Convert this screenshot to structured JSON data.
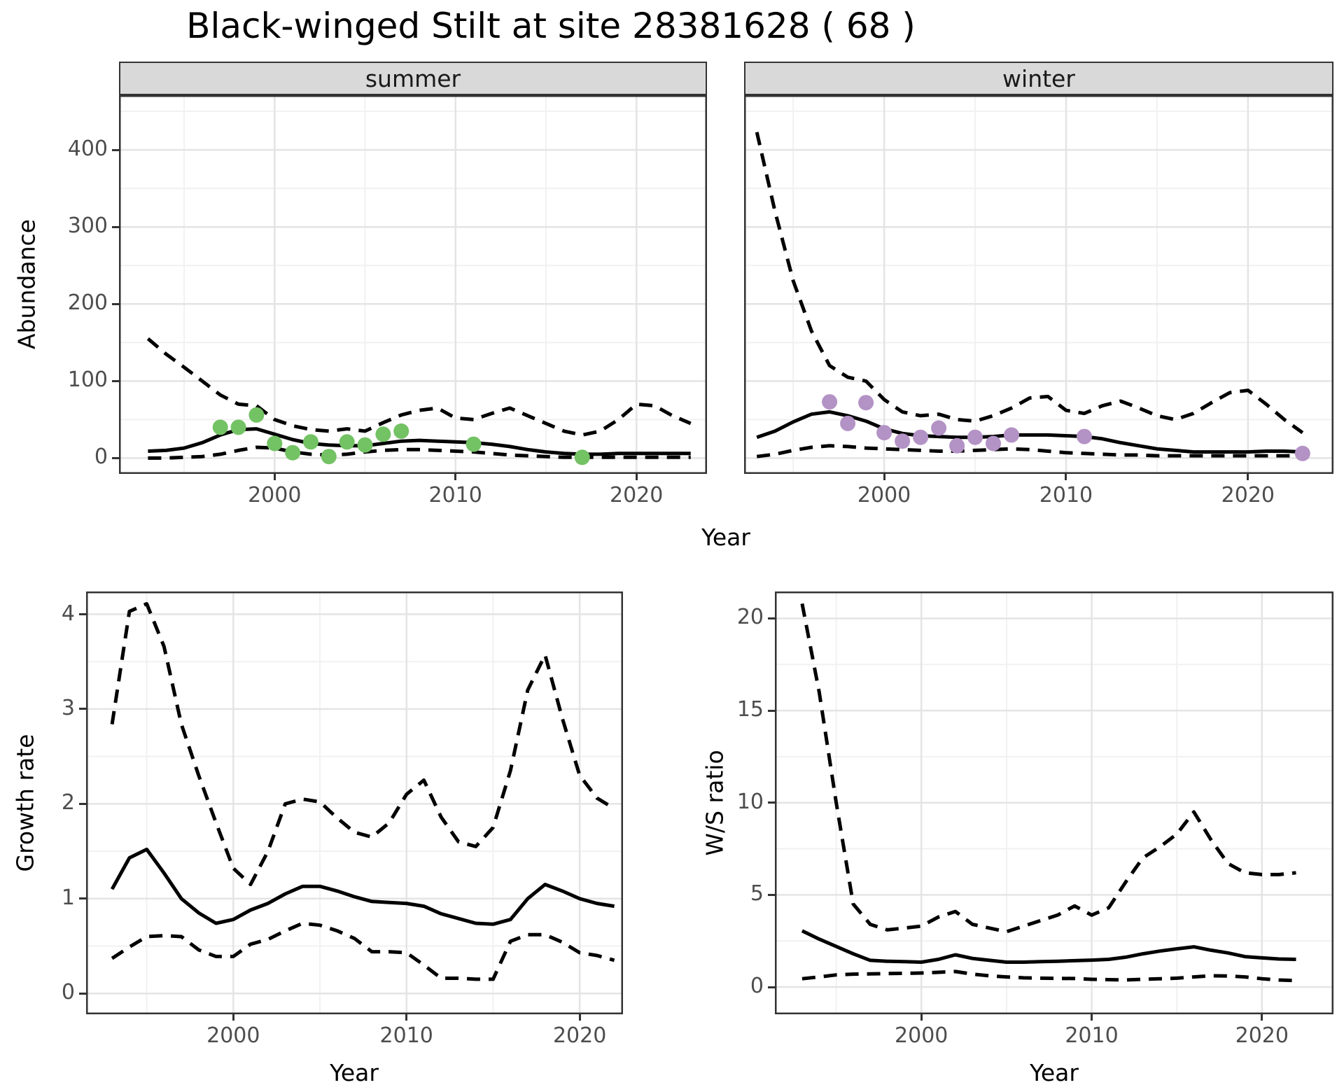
{
  "title": "Black-winged Stilt at site 28381628 ( 68 )",
  "colors": {
    "summer_point": "#73c264",
    "winter_point": "#b392c5",
    "line": "#000000",
    "strip_bg": "#d9d9d9",
    "grid_major": "#e4e4e4",
    "grid_minor": "#f1f1f1",
    "axis_text": "#4d4d4d",
    "panel_border": "#333333"
  },
  "top_row": {
    "ylab": "Abundance",
    "xlab": "Year",
    "facets": [
      "summer",
      "winter"
    ]
  },
  "bottom_left": {
    "ylab": "Growth rate",
    "xlab": "Year"
  },
  "bottom_right": {
    "ylab": "W/S ratio",
    "xlab": "Year"
  },
  "chart_data": [
    {
      "id": "summer-abundance",
      "type": "line",
      "facet": "summer",
      "xlabel": "Year",
      "ylabel": "Abundance",
      "xlim": [
        1991.4,
        2023.9
      ],
      "ylim": [
        -20.5,
        471
      ],
      "xticks": [
        2000,
        2010,
        2020
      ],
      "yticks": [
        0,
        100,
        200,
        300,
        400
      ],
      "xminor": [
        1995,
        2005,
        2015
      ],
      "yminor": [
        50,
        150,
        250,
        350,
        450
      ],
      "grid": true,
      "legend": "none",
      "years": [
        1993,
        1994,
        1995,
        1996,
        1997,
        1998,
        1999,
        2000,
        2001,
        2002,
        2003,
        2004,
        2005,
        2006,
        2007,
        2008,
        2009,
        2010,
        2011,
        2012,
        2013,
        2014,
        2015,
        2016,
        2017,
        2018,
        2019,
        2020,
        2021,
        2022,
        2023
      ],
      "series": [
        {
          "name": "mean",
          "style": "solid",
          "values": [
            9,
            10,
            13,
            20,
            30,
            37,
            38,
            31,
            24,
            19,
            17,
            16,
            16,
            19,
            22,
            23,
            22,
            21,
            20,
            18,
            15,
            11,
            8,
            6,
            5,
            5,
            6,
            6,
            6,
            6,
            6
          ]
        },
        {
          "name": "upper_ci",
          "style": "dashed",
          "values": [
            155,
            135,
            118,
            100,
            82,
            70,
            68,
            50,
            42,
            37,
            35,
            38,
            35,
            46,
            56,
            62,
            65,
            52,
            50,
            58,
            65,
            55,
            45,
            35,
            30,
            35,
            50,
            70,
            68,
            55,
            45
          ]
        },
        {
          "name": "lower_ci",
          "style": "dashed",
          "values": [
            0,
            0,
            1,
            2,
            5,
            10,
            14,
            13,
            8,
            5,
            4,
            5,
            8,
            10,
            11,
            11,
            10,
            9,
            8,
            6,
            4,
            3,
            2,
            1,
            1,
            1,
            1,
            1,
            1,
            1,
            1
          ]
        }
      ],
      "points": {
        "name": "observed_summer_counts",
        "color": "#73c264",
        "data": [
          [
            1997,
            40
          ],
          [
            1998,
            40
          ],
          [
            1999,
            56
          ],
          [
            2000,
            19
          ],
          [
            2001,
            7
          ],
          [
            2002,
            21
          ],
          [
            2003,
            2
          ],
          [
            2004,
            21
          ],
          [
            2005,
            17
          ],
          [
            2006,
            31
          ],
          [
            2007,
            35
          ],
          [
            2011,
            18
          ],
          [
            2017,
            1
          ]
        ]
      }
    },
    {
      "id": "winter-abundance",
      "type": "line",
      "facet": "winter",
      "xlabel": "Year",
      "ylabel": "Abundance",
      "xlim": [
        1992.3,
        2024.7
      ],
      "ylim": [
        -20.5,
        471
      ],
      "xticks": [
        2000,
        2010,
        2020
      ],
      "yticks": [
        0,
        100,
        200,
        300,
        400
      ],
      "xminor": [
        1995,
        2005,
        2015
      ],
      "yminor": [
        50,
        150,
        250,
        350,
        450
      ],
      "grid": true,
      "legend": "none",
      "years": [
        1993,
        1994,
        1995,
        1996,
        1997,
        1998,
        1999,
        2000,
        2001,
        2002,
        2003,
        2004,
        2005,
        2006,
        2007,
        2008,
        2009,
        2010,
        2011,
        2012,
        2013,
        2014,
        2015,
        2016,
        2017,
        2018,
        2019,
        2020,
        2021,
        2022,
        2023
      ],
      "series": [
        {
          "name": "mean",
          "style": "solid",
          "values": [
            27,
            35,
            47,
            57,
            60,
            55,
            48,
            38,
            32,
            29,
            28,
            27,
            27,
            28,
            30,
            30,
            30,
            29,
            28,
            25,
            20,
            16,
            12,
            10,
            8,
            8,
            8,
            8,
            9,
            9,
            8
          ]
        },
        {
          "name": "upper_ci",
          "style": "dashed",
          "values": [
            423,
            320,
            230,
            165,
            120,
            105,
            100,
            76,
            60,
            55,
            57,
            50,
            48,
            55,
            65,
            78,
            80,
            62,
            58,
            68,
            74,
            65,
            55,
            50,
            58,
            72,
            85,
            88,
            70,
            50,
            33
          ]
        },
        {
          "name": "lower_ci",
          "style": "dashed",
          "values": [
            2,
            5,
            10,
            14,
            16,
            15,
            13,
            12,
            11,
            10,
            9,
            9,
            10,
            11,
            12,
            11,
            9,
            7,
            6,
            5,
            4,
            4,
            3,
            3,
            3,
            3,
            3,
            3,
            3,
            3,
            3
          ]
        }
      ],
      "points": {
        "name": "observed_winter_counts",
        "color": "#b392c5",
        "data": [
          [
            1997,
            73
          ],
          [
            1998,
            45
          ],
          [
            1999,
            72
          ],
          [
            2000,
            33
          ],
          [
            2001,
            22
          ],
          [
            2002,
            27
          ],
          [
            2003,
            39
          ],
          [
            2004,
            16
          ],
          [
            2005,
            27
          ],
          [
            2006,
            19
          ],
          [
            2007,
            30
          ],
          [
            2011,
            28
          ],
          [
            2023,
            6
          ]
        ]
      }
    },
    {
      "id": "growth-rate",
      "type": "line",
      "xlabel": "Year",
      "ylabel": "Growth rate",
      "xlim": [
        1991.5,
        2022.5
      ],
      "ylim": [
        -0.22,
        4.24
      ],
      "xticks": [
        2000,
        2010,
        2020
      ],
      "yticks": [
        0,
        1,
        2,
        3,
        4
      ],
      "xminor": [
        1995,
        2005,
        2015
      ],
      "yminor": [
        0.5,
        1.5,
        2.5,
        3.5
      ],
      "grid": true,
      "legend": "none",
      "years": [
        1993,
        1994,
        1995,
        1996,
        1997,
        1998,
        1999,
        2000,
        2001,
        2002,
        2003,
        2004,
        2005,
        2006,
        2007,
        2008,
        2009,
        2010,
        2011,
        2012,
        2013,
        2014,
        2015,
        2016,
        2017,
        2018,
        2019,
        2020,
        2021,
        2022
      ],
      "series": [
        {
          "name": "mean",
          "style": "solid",
          "values": [
            1.1,
            1.43,
            1.52,
            1.27,
            1.0,
            0.85,
            0.74,
            0.78,
            0.88,
            0.95,
            1.05,
            1.13,
            1.13,
            1.08,
            1.02,
            0.97,
            0.96,
            0.95,
            0.92,
            0.84,
            0.79,
            0.74,
            0.73,
            0.78,
            1.0,
            1.15,
            1.08,
            1.0,
            0.95,
            0.92
          ]
        },
        {
          "name": "upper_ci",
          "style": "dashed",
          "values": [
            2.84,
            4.03,
            4.11,
            3.66,
            2.84,
            2.3,
            1.8,
            1.32,
            1.15,
            1.5,
            2.0,
            2.05,
            2.02,
            1.85,
            1.7,
            1.65,
            1.8,
            2.1,
            2.25,
            1.86,
            1.6,
            1.55,
            1.75,
            2.35,
            3.2,
            3.57,
            2.9,
            2.3,
            2.06,
            1.95
          ]
        },
        {
          "name": "lower_ci",
          "style": "dashed",
          "values": [
            0.37,
            0.49,
            0.6,
            0.61,
            0.6,
            0.46,
            0.39,
            0.39,
            0.52,
            0.57,
            0.66,
            0.74,
            0.72,
            0.66,
            0.58,
            0.44,
            0.44,
            0.43,
            0.3,
            0.16,
            0.16,
            0.15,
            0.15,
            0.55,
            0.62,
            0.62,
            0.54,
            0.43,
            0.4,
            0.35
          ]
        }
      ]
    },
    {
      "id": "ws-ratio",
      "type": "line",
      "xlabel": "Year",
      "ylabel": "W/S ratio",
      "xlim": [
        1991.4,
        2024.2
      ],
      "ylim": [
        -1.48,
        21.46
      ],
      "xticks": [
        2000,
        2010,
        2020
      ],
      "yticks": [
        0,
        5,
        10,
        15,
        20
      ],
      "xminor": [
        1995,
        2005,
        2015
      ],
      "yminor": [
        2.5,
        7.5,
        12.5,
        17.5
      ],
      "grid": true,
      "legend": "none",
      "years": [
        1993,
        1994,
        1995,
        1996,
        1997,
        1998,
        1999,
        2000,
        2001,
        2002,
        2003,
        2004,
        2005,
        2006,
        2007,
        2008,
        2009,
        2010,
        2011,
        2012,
        2013,
        2014,
        2015,
        2016,
        2017,
        2018,
        2019,
        2020,
        2021,
        2022
      ],
      "series": [
        {
          "name": "mean",
          "style": "solid",
          "values": [
            3.05,
            2.6,
            2.2,
            1.8,
            1.45,
            1.4,
            1.38,
            1.35,
            1.5,
            1.75,
            1.55,
            1.45,
            1.35,
            1.35,
            1.38,
            1.4,
            1.43,
            1.46,
            1.5,
            1.62,
            1.8,
            1.95,
            2.07,
            2.18,
            2.0,
            1.85,
            1.65,
            1.58,
            1.52,
            1.5
          ]
        },
        {
          "name": "upper_ci",
          "style": "dashed",
          "values": [
            20.8,
            16.0,
            10.0,
            4.5,
            3.4,
            3.1,
            3.2,
            3.3,
            3.8,
            4.1,
            3.4,
            3.2,
            3.0,
            3.3,
            3.6,
            3.9,
            4.4,
            3.9,
            4.3,
            5.7,
            7.0,
            7.6,
            8.3,
            9.5,
            8.0,
            6.7,
            6.2,
            6.1,
            6.1,
            6.2
          ]
        },
        {
          "name": "lower_ci",
          "style": "dashed",
          "values": [
            0.45,
            0.55,
            0.66,
            0.7,
            0.71,
            0.73,
            0.74,
            0.76,
            0.8,
            0.84,
            0.7,
            0.61,
            0.55,
            0.5,
            0.48,
            0.47,
            0.46,
            0.42,
            0.4,
            0.38,
            0.42,
            0.45,
            0.48,
            0.55,
            0.61,
            0.6,
            0.55,
            0.45,
            0.38,
            0.35
          ]
        }
      ]
    }
  ]
}
